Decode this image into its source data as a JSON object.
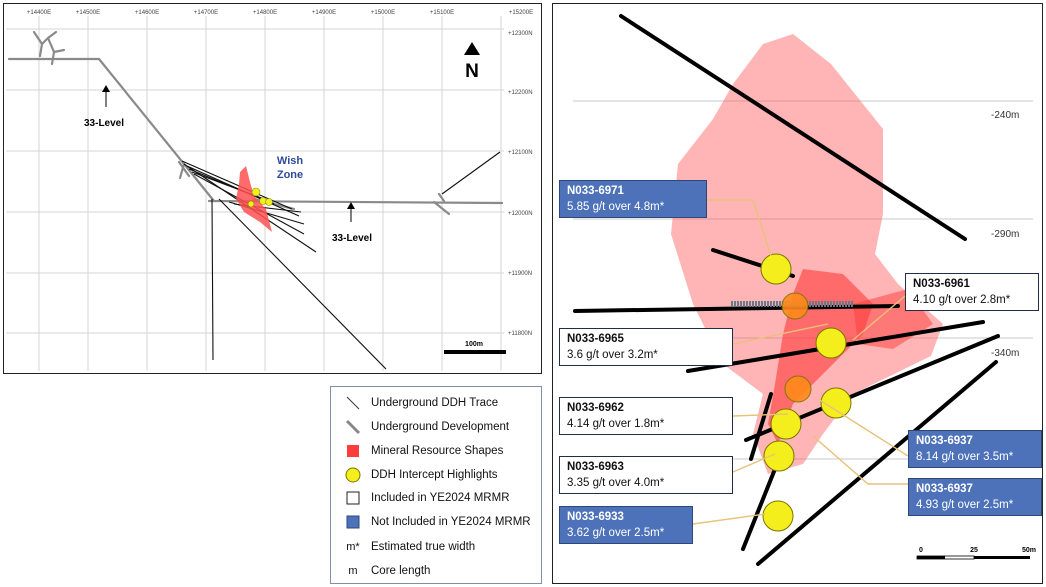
{
  "plan_map": {
    "eastings": [
      "+14400E",
      "+14500E",
      "+14600E",
      "+14700E",
      "+14800E",
      "+14900E",
      "+15000E",
      "+15100E",
      "+15200E"
    ],
    "northings": [
      "+12300N",
      "+12200N",
      "+12100N",
      "+12000N",
      "+11900N",
      "+11800N"
    ],
    "north_label": "N",
    "zone_label": "Wish\nZone",
    "level_labels": [
      "33-Level",
      "33-Level"
    ],
    "scale_label": "100m"
  },
  "section": {
    "elevations": [
      "-240m",
      "-290m",
      "-340m"
    ],
    "scale_ticks": [
      "0",
      "25",
      "50m"
    ],
    "labels": [
      {
        "id": "N033-6971",
        "text": "5.85 g/t over 4.8m*",
        "style": "blue"
      },
      {
        "id": "N033-6961",
        "text": "4.10 g/t over 2.8m*",
        "style": "white"
      },
      {
        "id": "N033-6965",
        "text": "3.6 g/t over 3.2m*",
        "style": "white"
      },
      {
        "id": "N033-6962",
        "text": "4.14 g/t over 1.8m*",
        "style": "white"
      },
      {
        "id": "N033-6963",
        "text": "3.35 g/t over 4.0m*",
        "style": "white"
      },
      {
        "id": "N033-6933",
        "text": "3.62 g/t over 2.5m*",
        "style": "blue"
      },
      {
        "id": "N033-6937",
        "text": "8.14 g/t over 3.5m*",
        "style": "blue"
      },
      {
        "id": "N033-6937",
        "text": "4.93 g/t over 2.5m*",
        "style": "blue"
      }
    ]
  },
  "legend": {
    "items": [
      {
        "icon": "ddh-trace-icon",
        "text": "Underground DDH Trace"
      },
      {
        "icon": "development-icon",
        "text": "Underground Development"
      },
      {
        "icon": "mineral-shape-icon",
        "text": "Mineral Resource Shapes"
      },
      {
        "icon": "intercept-icon",
        "text": "DDH Intercept Highlights"
      },
      {
        "icon": "included-icon",
        "text": "Included in YE2024 MRMR"
      },
      {
        "icon": "not-included-icon",
        "text": "Not Included in YE2024 MRMR"
      },
      {
        "key": "m*",
        "text": "Estimated true width"
      },
      {
        "key": "m",
        "text": "Core length"
      }
    ]
  },
  "colors": {
    "mineral": "#ff5555",
    "intercept": "#f4ef1c",
    "label_blue": "#4d72b9",
    "development": "#8a8a8a"
  }
}
